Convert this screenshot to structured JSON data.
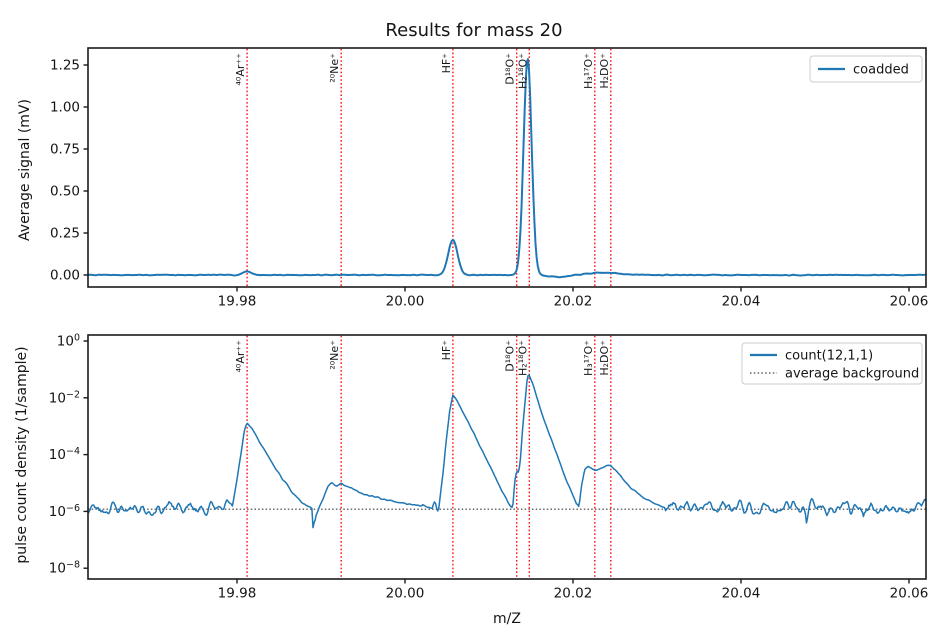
{
  "figure": {
    "title": "Results for mass 20",
    "background_color": "#ffffff",
    "line_blue": "#1f77b4",
    "vline_red": "#fe1010",
    "spine_color": "#1a1a1a"
  },
  "chart_data": [
    {
      "type": "line",
      "panel": "top",
      "ylabel": "Average signal (mV)",
      "xlabel": "",
      "grid": false,
      "xlim": [
        19.9623,
        20.062
      ],
      "ylim": [
        -0.077,
        1.351
      ],
      "xticks": [
        19.98,
        20.0,
        20.02,
        20.04,
        20.06
      ],
      "xtick_labels": [
        "19.98",
        "20.00",
        "20.02",
        "20.04",
        "20.06"
      ],
      "yticks": [
        0.0,
        0.25,
        0.5,
        0.75,
        1.0,
        1.25
      ],
      "ytick_labels": [
        "0.00",
        "0.25",
        "0.50",
        "0.75",
        "1.00",
        "1.25"
      ],
      "legend": {
        "position": "upper right",
        "entries": [
          {
            "label": "coadded",
            "color": "#1f77b4",
            "dash": "solid"
          }
        ]
      },
      "series": [
        {
          "name": "coadded",
          "model": "gaussian-peaks",
          "baseline_mV": 0.0,
          "noise_amp_mV": 0.0015,
          "peaks": [
            {
              "species": "⁴⁰Ar⁺⁺",
              "center": 19.9812,
              "height_mV": 0.022,
              "sigma": 0.0005
            },
            {
              "species": "HF⁺",
              "center": 20.0057,
              "height_mV": 0.21,
              "sigma": 0.00055
            },
            {
              "species": "H₂¹⁸O⁺",
              "center": 20.0146,
              "height_mV": 1.29,
              "sigma": 0.00048
            },
            {
              "species": "dip",
              "center": 20.0185,
              "height_mV": -0.012,
              "sigma": 0.0012
            },
            {
              "species": "H₃¹⁷O⁺/H₂DO⁺",
              "center": 20.0237,
              "height_mV": 0.013,
              "sigma": 0.002
            }
          ]
        }
      ],
      "vlines": {
        "color": "#fe1010",
        "style": "dotted",
        "items": [
          {
            "x": 19.9812,
            "label": "⁴⁰Ar⁺⁺"
          },
          {
            "x": 19.9924,
            "label": "²⁰Ne⁺"
          },
          {
            "x": 20.0057,
            "label": "HF⁺"
          },
          {
            "x": 20.0133,
            "label": "D¹⁸O⁺"
          },
          {
            "x": 20.0148,
            "label": "H₂¹⁸O⁺"
          },
          {
            "x": 20.0226,
            "label": "H₃¹⁷O⁺"
          },
          {
            "x": 20.0245,
            "label": "H₂DO⁺"
          }
        ]
      }
    },
    {
      "type": "line",
      "panel": "bottom",
      "ylabel": "pulse count density (1/sample)",
      "xlabel": "m/Z",
      "yscale": "log",
      "grid": false,
      "xlim": [
        19.9623,
        20.062
      ],
      "ylim": [
        1e-08,
        1.0
      ],
      "xticks": [
        19.98,
        20.0,
        20.02,
        20.04,
        20.06
      ],
      "xtick_labels": [
        "19.98",
        "20.00",
        "20.02",
        "20.04",
        "20.06"
      ],
      "yticks": [
        1.0,
        0.01,
        0.0001,
        1e-06,
        1e-08
      ],
      "ytick_exponent_labels": [
        "0",
        "−2",
        "−4",
        "−6",
        "−8"
      ],
      "legend": {
        "position": "upper right",
        "entries": [
          {
            "label": "count(12,1,1)",
            "color": "#1f77b4",
            "dash": "solid"
          },
          {
            "label": "average background",
            "color": "#444444",
            "dash": "dotted"
          }
        ]
      },
      "background_level": 1.2e-06,
      "series": [
        {
          "name": "count(12,1,1)",
          "model": "log-piecewise-peaks",
          "noise_floor": 1.3e-06,
          "noise_floor_log10": -5.89,
          "noise_amp_log10": 0.45,
          "peaks": [
            {
              "species": "⁴⁰Ar⁺⁺",
              "center": 19.9812,
              "apex": 0.0014
            },
            {
              "species": "²⁰Ne⁺",
              "center": 19.992,
              "apex": 1e-05
            },
            {
              "species": "HF⁺",
              "center": 20.0057,
              "apex": 0.013
            },
            {
              "species": "H₂¹⁸O⁺",
              "center": 20.0147,
              "apex": 0.076
            },
            {
              "species": "H₃¹⁷O⁺/H₂DO⁺",
              "center": 20.0235,
              "apex": 4e-05
            }
          ],
          "profile_log10": [
            [
              [
                19.9794,
                -5.9
              ],
              [
                19.98,
                -4.9
              ],
              [
                19.9805,
                -3.9
              ],
              [
                19.9809,
                -3.1
              ],
              [
                19.9812,
                -2.86
              ],
              [
                19.9817,
                -3.05
              ],
              [
                19.9824,
                -3.4
              ],
              [
                19.9833,
                -3.85
              ],
              [
                19.9843,
                -4.35
              ],
              [
                19.9854,
                -4.85
              ],
              [
                19.9866,
                -5.35
              ],
              [
                19.9878,
                -5.7
              ],
              [
                19.989,
                -5.87
              ]
            ],
            [
              [
                19.9897,
                -5.9
              ],
              [
                19.9903,
                -5.5
              ],
              [
                19.9908,
                -5.12
              ],
              [
                19.9913,
                -4.98
              ],
              [
                19.9918,
                -5.1
              ],
              [
                19.9924,
                -5.0
              ],
              [
                19.993,
                -5.12
              ],
              [
                19.994,
                -5.25
              ],
              [
                19.9952,
                -5.4
              ],
              [
                19.9966,
                -5.5
              ],
              [
                19.9982,
                -5.62
              ],
              [
                20.0,
                -5.72
              ],
              [
                20.002,
                -5.82
              ],
              [
                20.0036,
                -5.9
              ]
            ],
            [
              [
                20.004,
                -5.92
              ],
              [
                20.0045,
                -4.7
              ],
              [
                20.0049,
                -3.5
              ],
              [
                20.0053,
                -2.5
              ],
              [
                20.0057,
                -1.88
              ],
              [
                20.0062,
                -2.1
              ],
              [
                20.0068,
                -2.45
              ],
              [
                20.0076,
                -2.9
              ],
              [
                20.0085,
                -3.45
              ],
              [
                20.0095,
                -4.05
              ],
              [
                20.0106,
                -4.7
              ],
              [
                20.0116,
                -5.3
              ],
              [
                20.0124,
                -5.75
              ],
              [
                20.0128,
                -5.92
              ]
            ],
            [
              [
                20.0128,
                -5.92
              ],
              [
                20.0131,
                -4.85
              ],
              [
                20.0133,
                -4.55
              ],
              [
                20.0135,
                -4.62
              ],
              [
                20.0137,
                -4.35
              ],
              [
                20.0139,
                -3.5
              ],
              [
                20.0142,
                -2.4
              ],
              [
                20.0145,
                -1.45
              ],
              [
                20.0147,
                -1.12
              ],
              [
                20.0151,
                -1.4
              ],
              [
                20.0156,
                -1.9
              ],
              [
                20.0163,
                -2.55
              ],
              [
                20.0172,
                -3.3
              ],
              [
                20.0182,
                -4.1
              ],
              [
                20.0191,
                -4.8
              ],
              [
                20.0199,
                -5.35
              ],
              [
                20.0206,
                -5.9
              ]
            ],
            [
              [
                20.0207,
                -5.9
              ],
              [
                20.021,
                -5.1
              ],
              [
                20.0214,
                -4.55
              ],
              [
                20.0218,
                -4.42
              ],
              [
                20.0223,
                -4.5
              ],
              [
                20.0228,
                -4.56
              ],
              [
                20.0234,
                -4.5
              ],
              [
                20.024,
                -4.42
              ],
              [
                20.0245,
                -4.38
              ],
              [
                20.0251,
                -4.55
              ],
              [
                20.0259,
                -4.85
              ],
              [
                20.0269,
                -5.15
              ],
              [
                20.0281,
                -5.45
              ],
              [
                20.0295,
                -5.7
              ],
              [
                20.031,
                -5.87
              ]
            ]
          ]
        }
      ],
      "vlines": {
        "color": "#fe1010",
        "style": "dotted",
        "items": [
          {
            "x": 19.9812,
            "label": "⁴⁰Ar⁺⁺"
          },
          {
            "x": 19.9924,
            "label": "²⁰Ne⁺"
          },
          {
            "x": 20.0057,
            "label": "HF⁺"
          },
          {
            "x": 20.0133,
            "label": "D¹⁸O⁺"
          },
          {
            "x": 20.0148,
            "label": "H₂¹⁸O⁺"
          },
          {
            "x": 20.0226,
            "label": "H₃¹⁷O⁺"
          },
          {
            "x": 20.0245,
            "label": "H₂DO⁺"
          }
        ]
      }
    }
  ]
}
